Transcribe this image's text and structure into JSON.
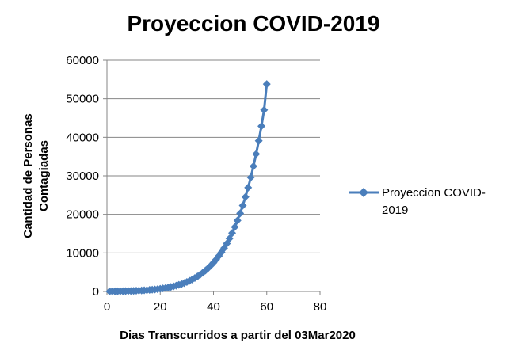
{
  "chart_data": {
    "type": "scatter",
    "title": "Proyeccion COVID-2019",
    "xlabel": "Dias Transcurridos a partir del 03Mar2020",
    "ylabel_lines": [
      "Cantidad de Personas",
      "Contagiadas"
    ],
    "xlim": [
      0,
      80
    ],
    "ylim": [
      0,
      60000
    ],
    "x_ticks": [
      0,
      20,
      40,
      60,
      80
    ],
    "y_ticks": [
      0,
      10000,
      20000,
      30000,
      40000,
      50000,
      60000
    ],
    "grid": "horizontal",
    "legend_position": "right",
    "legend_lines": [
      "Proyeccion COVID-",
      "2019"
    ],
    "series": [
      {
        "name": "Proyeccion COVID-2019",
        "color": "#4a7ebb",
        "marker": "diamond",
        "x": [
          1,
          2,
          3,
          4,
          5,
          6,
          7,
          8,
          9,
          10,
          11,
          12,
          13,
          14,
          15,
          16,
          17,
          18,
          19,
          20,
          21,
          22,
          23,
          24,
          25,
          26,
          27,
          28,
          29,
          30,
          31,
          32,
          33,
          34,
          35,
          36,
          37,
          38,
          39,
          40,
          41,
          42,
          43,
          44,
          45,
          46,
          47,
          48,
          49,
          50,
          51,
          52,
          53,
          54,
          55,
          56,
          57,
          58,
          59,
          60
        ],
        "values": [
          30,
          40,
          50,
          60,
          70,
          85,
          100,
          120,
          140,
          165,
          195,
          225,
          260,
          300,
          345,
          400,
          460,
          525,
          600,
          690,
          790,
          900,
          1030,
          1170,
          1330,
          1510,
          1710,
          1930,
          2180,
          2460,
          2770,
          3110,
          3490,
          3910,
          4370,
          4880,
          5440,
          6050,
          6730,
          7470,
          8290,
          9190,
          10170,
          11250,
          12430,
          13730,
          15150,
          16710,
          18410,
          20270,
          22300,
          24530,
          26950,
          29600,
          32500,
          35650,
          39100,
          42900,
          47100,
          53800
        ]
      }
    ]
  }
}
